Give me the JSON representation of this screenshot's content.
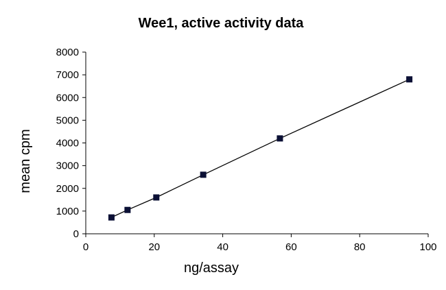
{
  "chart_data": {
    "type": "line",
    "title": "Wee1, active activity data",
    "xlabel": "ng/assay",
    "ylabel": "mean cpm",
    "xlim": [
      0,
      100
    ],
    "ylim": [
      0,
      8000
    ],
    "xticks": [
      0,
      20,
      40,
      60,
      80,
      100
    ],
    "yticks": [
      0,
      1000,
      2000,
      3000,
      4000,
      5000,
      6000,
      7000,
      8000
    ],
    "grid": false,
    "legend": "none",
    "series": [
      {
        "x": [
          7.5,
          12.2,
          20.6,
          34.3,
          56.7,
          94.5
        ],
        "y": [
          720,
          1050,
          1600,
          2600,
          4200,
          6800
        ],
        "color": "#000000",
        "marker_color": "#0b1035",
        "marker": "square"
      }
    ]
  }
}
